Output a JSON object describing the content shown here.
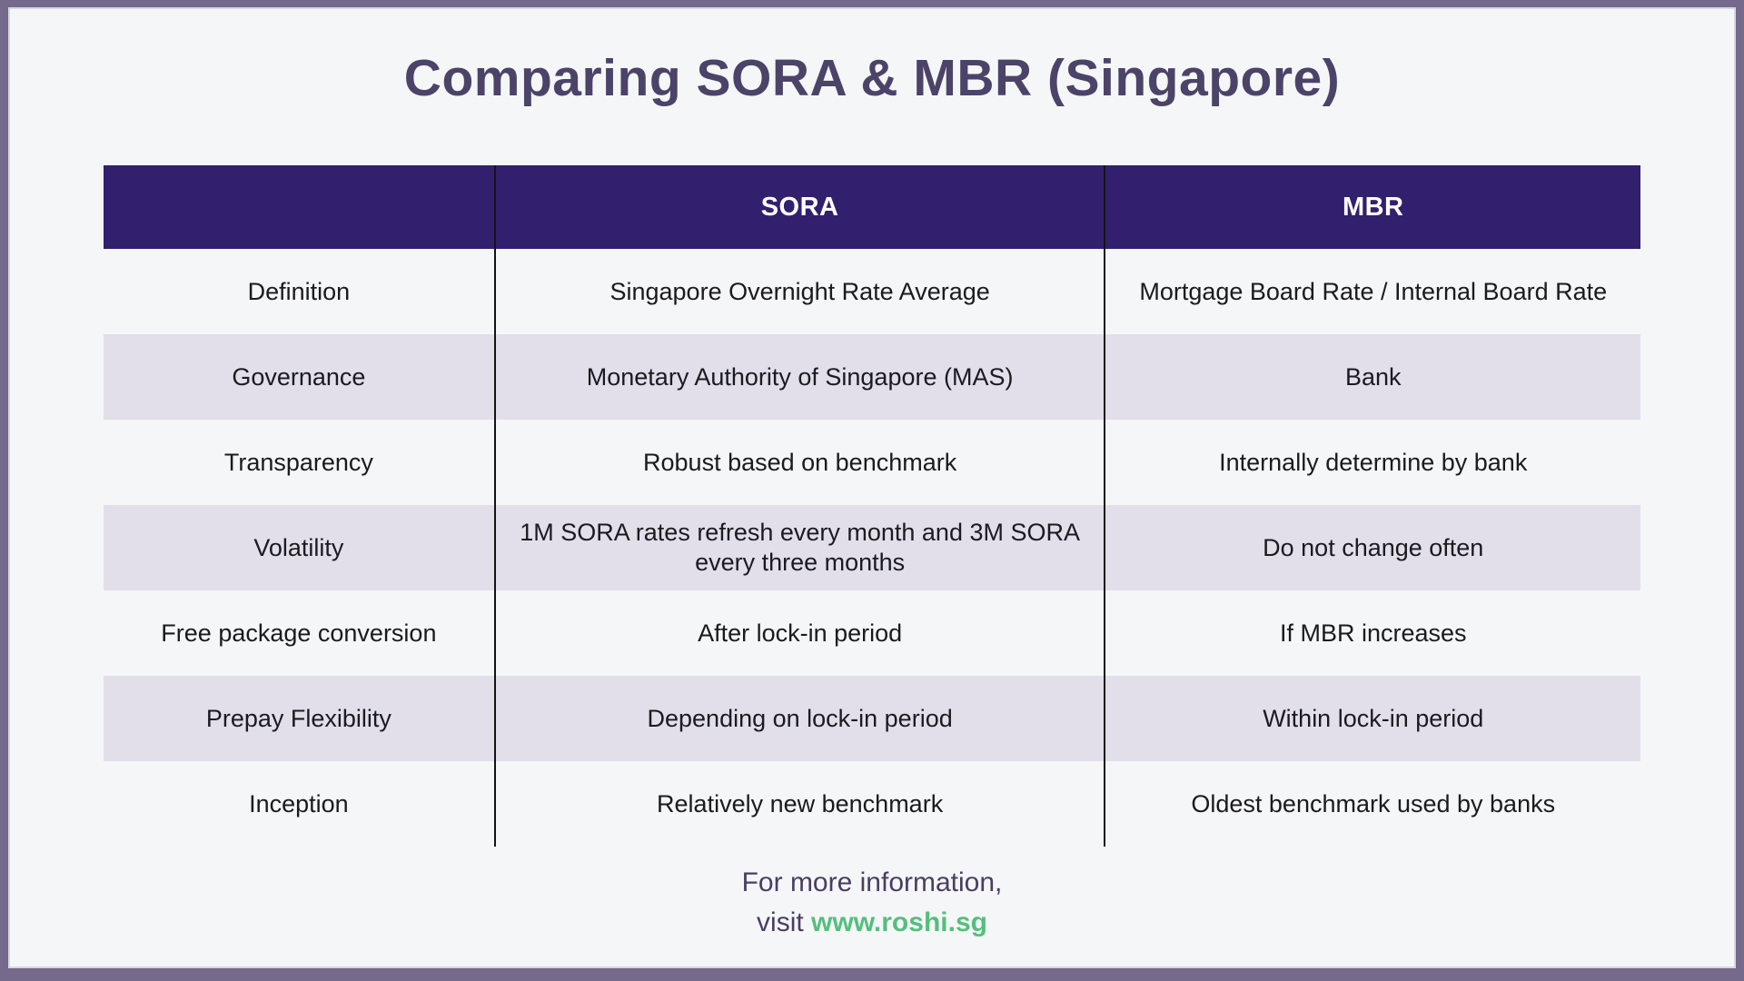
{
  "title": "Comparing SORA & MBR (Singapore)",
  "colors": {
    "frame": "#756a8b",
    "background": "#f5f6f7",
    "header_bg": "#32206e",
    "header_text": "#ffffff",
    "row_alt_bg": "#e2dfeb",
    "row_text": "#1b1b1d",
    "title_text": "#4c4369",
    "footer_text": "#4a3d63",
    "link_green": "#54bf7d",
    "divider": "#141414"
  },
  "chart_data": {
    "type": "table",
    "title": "Comparing SORA & MBR (Singapore)",
    "columns": [
      "",
      "SORA",
      "MBR"
    ],
    "rows": [
      {
        "label": "Definition",
        "sora": "Singapore Overnight Rate Average",
        "mbr": "Mortgage Board Rate / Internal Board Rate"
      },
      {
        "label": "Governance",
        "sora": "Monetary Authority of Singapore (MAS)",
        "mbr": "Bank"
      },
      {
        "label": "Transparency",
        "sora": "Robust based on benchmark",
        "mbr": "Internally determine by bank"
      },
      {
        "label": "Volatility",
        "sora": "1M SORA rates refresh every month and 3M SORA every three months",
        "mbr": "Do not change often"
      },
      {
        "label": "Free package conversion",
        "sora": "After lock-in period",
        "mbr": "If MBR increases"
      },
      {
        "label": "Prepay Flexibility",
        "sora": "Depending on lock-in period",
        "mbr": "Within lock-in period"
      },
      {
        "label": "Inception",
        "sora": "Relatively new benchmark",
        "mbr": "Oldest benchmark used by banks"
      }
    ]
  },
  "footer": {
    "line1": "For more information,",
    "visit_prefix": "visit ",
    "link_text": "www.roshi.sg"
  }
}
